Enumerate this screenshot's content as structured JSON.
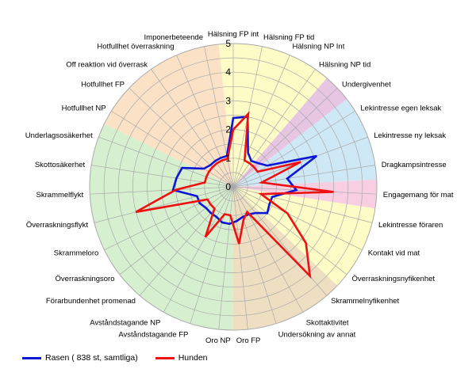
{
  "chart_data": {
    "type": "radar",
    "title": "",
    "categories": [
      "Hälsning FP int",
      "Hälsning FP tid",
      "Hälsning NP Int",
      "Hälsning NP tid",
      "Undergivenhet",
      "Lekintresse egen leksak",
      "Lekintresse ny leksak",
      "Dragkampsintresse",
      "Engagemang för mat",
      "Lekintresse föraren",
      "Kontakt vid mat",
      "Överraskningsnyfikenhet",
      "Skrammelnyfikenhet",
      "Skottaktivitet",
      "Undersökning av annat",
      "Oro FP",
      "Oro NP",
      "Avståndstagande FP",
      "Avståndstagande NP",
      "Förarbundenhet promenad",
      "Överraskningsoro",
      "Skrammeloro",
      "Överraskningsflykt",
      "Skrammelflykt",
      "Skottosäkerhet",
      "Underlagsosäkerhet",
      "Hotfullhet NP",
      "Hotfullhet FP",
      "Off reaktion vid överrask",
      "Hotfullhet överraskning",
      "Imponerbeteende"
    ],
    "rmax": 5,
    "ticks": [
      0,
      1,
      2,
      3,
      4,
      5
    ],
    "grid": true,
    "legend_position": "bottom-left",
    "series": [
      {
        "name": "Rasen ( 838 st, samtliga)",
        "color": "#0b16d6",
        "values": [
          2.4,
          2.5,
          1.3,
          1.1,
          1.2,
          1.4,
          3.1,
          1.9,
          2.2,
          1.4,
          1.4,
          1.5,
          1.2,
          1.1,
          1.1,
          1.2,
          1.3,
          1.3,
          1.2,
          1.2,
          1.2,
          1.3,
          1.3,
          2.1,
          2.0,
          1.9,
          1.2,
          1.1,
          1.1,
          1.1,
          1.1
        ]
      },
      {
        "name": "Hunden",
        "color": "#ee1111",
        "values": [
          2.0,
          2.6,
          1.0,
          1.0,
          1.0,
          1.0,
          2.5,
          1.0,
          3.5,
          1.0,
          2.1,
          3.2,
          4.1,
          1.0,
          1.2,
          2.0,
          1.0,
          1.0,
          2.0,
          1.0,
          1.0,
          1.0,
          3.5,
          2.0,
          1.0,
          1.0,
          1.0,
          1.0,
          1.0,
          1.0,
          1.0
        ]
      }
    ],
    "sectors": [
      {
        "from": 0,
        "to": 3,
        "color": "#fdfbc6"
      },
      {
        "from": 4,
        "to": 4,
        "color": "#e7c6e4"
      },
      {
        "from": 5,
        "to": 7,
        "color": "#cfe8f5"
      },
      {
        "from": 8,
        "to": 8,
        "color": "#f8cfe2"
      },
      {
        "from": 9,
        "to": 11,
        "color": "#fdfbc6"
      },
      {
        "from": 12,
        "to": 15,
        "color": "#eedfc2"
      },
      {
        "from": 16,
        "to": 25,
        "color": "#d6f0cf"
      },
      {
        "from": 26,
        "to": 30,
        "color": "#fbe1c6"
      }
    ]
  }
}
